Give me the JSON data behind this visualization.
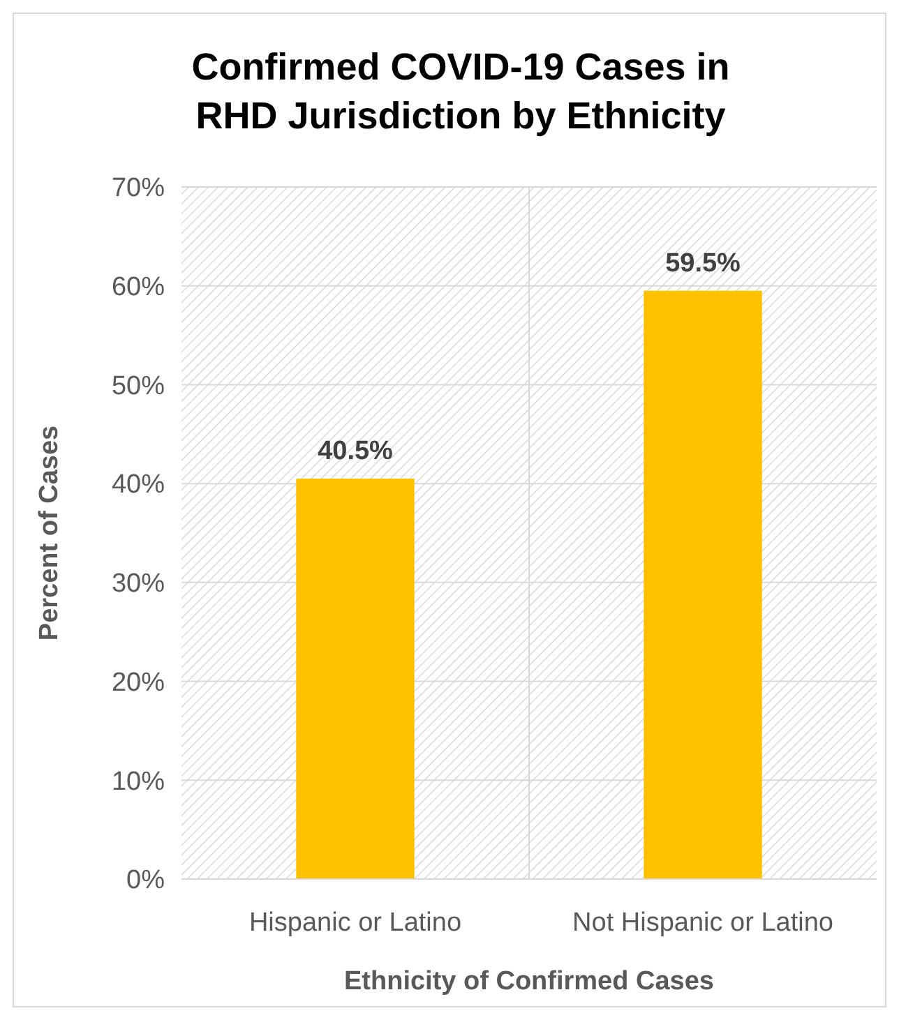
{
  "chart_data": {
    "type": "bar",
    "title": "Confirmed COVID-19 Cases in RHD Jurisdiction by Ethnicity",
    "xlabel": "Ethnicity of Confirmed Cases",
    "ylabel": "Percent of Cases",
    "categories": [
      "Hispanic or Latino",
      "Not Hispanic or Latino"
    ],
    "values": [
      40.5,
      59.5
    ],
    "color": "#ffc000",
    "value_labels": [
      "40.5%",
      "59.5%"
    ],
    "ylim": [
      0,
      70
    ],
    "yticks": [
      {
        "value": 0,
        "label": "0%"
      },
      {
        "value": 10,
        "label": "10%"
      },
      {
        "value": 20,
        "label": "20%"
      },
      {
        "value": 30,
        "label": "30%"
      },
      {
        "value": 40,
        "label": "40%"
      },
      {
        "value": 50,
        "label": "50%"
      },
      {
        "value": 60,
        "label": "60%"
      },
      {
        "value": 70,
        "label": "70%"
      }
    ],
    "grid": true
  }
}
